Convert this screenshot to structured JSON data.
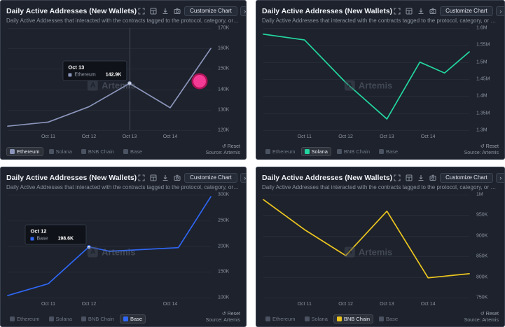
{
  "panel_chrome": {
    "title": "Daily Active Addresses (New Wallets)",
    "subtitle": "Daily Active Addresses that interacted with the contracts tagged to the protocol, category, or chain for t...",
    "customize_label": "Customize Chart",
    "chevron": "›",
    "reset_icon": "↺",
    "reset_label": "Reset",
    "source_label": "Source: Artemis",
    "watermark_logo_letter": "A",
    "watermark_text": "Artemis",
    "toolbar_icons": [
      "fullscreen-icon",
      "table-icon",
      "download-icon",
      "camera-icon"
    ]
  },
  "chart_data": [
    {
      "type": "line",
      "title": "Daily Active Addresses (New Wallets)",
      "series_name": "Ethereum",
      "color": "#8b95bb",
      "unit": "K",
      "xlim": [
        0,
        5
      ],
      "ylim": [
        120,
        170
      ],
      "x": [
        0,
        1,
        2,
        3,
        4,
        5
      ],
      "values": [
        122,
        124,
        131.5,
        142.9,
        131,
        160
      ],
      "y_ticks": [
        {
          "label": "170K",
          "value": 170
        },
        {
          "label": "160K",
          "value": 160
        },
        {
          "label": "150K",
          "value": 150
        },
        {
          "label": "140K",
          "value": 140
        },
        {
          "label": "130K",
          "value": 130
        },
        {
          "label": "120K",
          "value": 120
        }
      ],
      "x_ticks": [
        {
          "label": "Oct 11",
          "x": 1
        },
        {
          "label": "Oct 12",
          "x": 2
        },
        {
          "label": "Oct 13",
          "x": 3
        },
        {
          "label": "Oct 14",
          "x": 4
        }
      ],
      "tooltip": {
        "title": "Oct 13",
        "name": "Ethereum",
        "value": "142.9K",
        "x": 3,
        "v": 142.9
      },
      "marker": {
        "x": 3,
        "v": 142.9
      },
      "crosshair_x": 3,
      "cursor_dot": {
        "x_pct": 94.5,
        "y_pct": 52,
        "color": "#ff3d9a",
        "ring": "#b4145a"
      },
      "legend": [
        {
          "label": "Ethereum",
          "color": "#8b95bb",
          "active": true
        },
        {
          "label": "Solana",
          "color": "#4b5261",
          "active": false
        },
        {
          "label": "BNB Chain",
          "color": "#4b5261",
          "active": false
        },
        {
          "label": "Base",
          "color": "#4b5261",
          "active": false
        }
      ]
    },
    {
      "type": "line",
      "title": "Daily Active Addresses (New Wallets)",
      "series_name": "Solana",
      "color": "#23d69f",
      "unit": "M",
      "xlim": [
        0,
        5
      ],
      "ylim": [
        1.3,
        1.6
      ],
      "x": [
        0,
        1,
        2,
        3,
        3.8,
        4.4,
        5
      ],
      "values": [
        1.582,
        1.565,
        1.44,
        1.333,
        1.5,
        1.468,
        1.53
      ],
      "y_ticks": [
        {
          "label": "1.6M",
          "value": 1.6
        },
        {
          "label": "1.55M",
          "value": 1.55
        },
        {
          "label": "1.5M",
          "value": 1.5
        },
        {
          "label": "1.45M",
          "value": 1.45
        },
        {
          "label": "1.4M",
          "value": 1.4
        },
        {
          "label": "1.35M",
          "value": 1.35
        },
        {
          "label": "1.3M",
          "value": 1.3
        }
      ],
      "x_ticks": [
        {
          "label": "Oct 11",
          "x": 1
        },
        {
          "label": "Oct 12",
          "x": 2
        },
        {
          "label": "Oct 13",
          "x": 3
        },
        {
          "label": "Oct 14",
          "x": 4
        }
      ],
      "legend": [
        {
          "label": "Ethereum",
          "color": "#4b5261",
          "active": false
        },
        {
          "label": "Solana",
          "color": "#23d69f",
          "active": true
        },
        {
          "label": "BNB Chain",
          "color": "#4b5261",
          "active": false
        },
        {
          "label": "Base",
          "color": "#4b5261",
          "active": false
        }
      ]
    },
    {
      "type": "line",
      "title": "Daily Active Addresses (New Wallets)",
      "series_name": "Base",
      "color": "#2f66f5",
      "unit": "K",
      "xlim": [
        0,
        5
      ],
      "ylim": [
        100,
        300
      ],
      "x": [
        0,
        1,
        2,
        2.5,
        4.2,
        5
      ],
      "values": [
        104,
        127,
        198.6,
        190,
        197,
        296
      ],
      "y_ticks": [
        {
          "label": "300K",
          "value": 300
        },
        {
          "label": "250K",
          "value": 250
        },
        {
          "label": "200K",
          "value": 200
        },
        {
          "label": "150K",
          "value": 150
        },
        {
          "label": "100K",
          "value": 100
        }
      ],
      "x_ticks": [
        {
          "label": "Oct 11",
          "x": 1
        },
        {
          "label": "Oct 12",
          "x": 2
        },
        {
          "label": "Oct 14",
          "x": 4
        }
      ],
      "tooltip": {
        "title": "Oct 12",
        "name": "Base",
        "value": "198.6K",
        "x": 2,
        "v": 198.6
      },
      "marker": {
        "x": 2,
        "v": 198.6
      },
      "legend": [
        {
          "label": "Ethereum",
          "color": "#4b5261",
          "active": false
        },
        {
          "label": "Solana",
          "color": "#4b5261",
          "active": false
        },
        {
          "label": "BNB Chain",
          "color": "#4b5261",
          "active": false
        },
        {
          "label": "Base",
          "color": "#2f66f5",
          "active": true
        }
      ]
    },
    {
      "type": "line",
      "title": "Daily Active Addresses (New Wallets)",
      "series_name": "BNB Chain",
      "color": "#ecc520",
      "unit": "K",
      "xlim": [
        0,
        5
      ],
      "ylim": [
        750,
        1000
      ],
      "x": [
        0,
        1,
        2,
        3,
        4,
        5
      ],
      "values": [
        988,
        915,
        852,
        960,
        798,
        808
      ],
      "y_ticks": [
        {
          "label": "1M",
          "value": 1000
        },
        {
          "label": "950K",
          "value": 950
        },
        {
          "label": "900K",
          "value": 900
        },
        {
          "label": "850K",
          "value": 850
        },
        {
          "label": "800K",
          "value": 800
        },
        {
          "label": "750K",
          "value": 750
        }
      ],
      "x_ticks": [
        {
          "label": "Oct 11",
          "x": 1
        },
        {
          "label": "Oct 12",
          "x": 2
        },
        {
          "label": "Oct 13",
          "x": 3
        },
        {
          "label": "Oct 14",
          "x": 4
        }
      ],
      "legend": [
        {
          "label": "Ethereum",
          "color": "#4b5261",
          "active": false
        },
        {
          "label": "Solana",
          "color": "#4b5261",
          "active": false
        },
        {
          "label": "BNB Chain",
          "color": "#ecc520",
          "active": true
        },
        {
          "label": "Base",
          "color": "#4b5261",
          "active": false
        }
      ]
    }
  ]
}
